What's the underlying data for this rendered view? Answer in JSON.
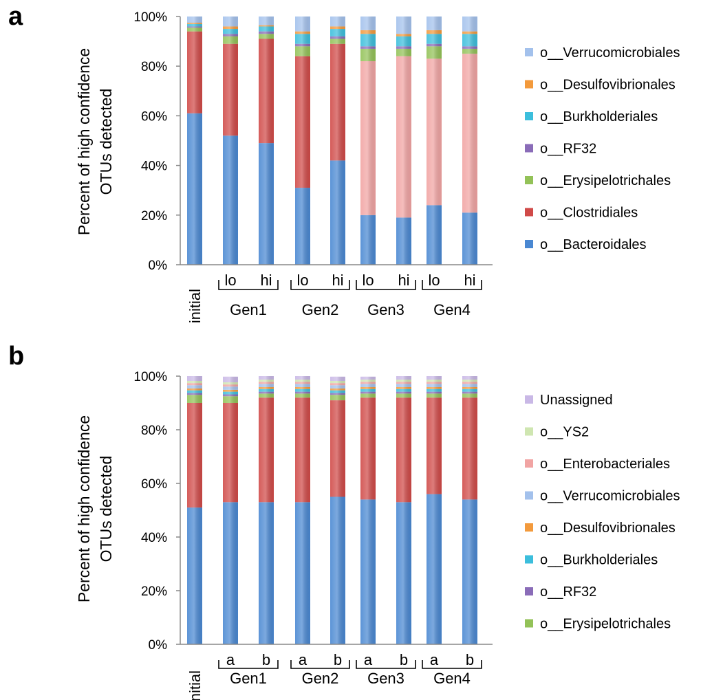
{
  "colors": {
    "Bacteroidales": "#4a88d2",
    "Clostridiales": "#d04a48",
    "Erysipelotrichales": "#93c258",
    "RF32": "#8a6cb8",
    "Burkholderiales": "#3cbedc",
    "Desulfovibrionales": "#f39a3c",
    "Verrucomicrobiales": "#a3c1ec",
    "Enterobacteriales": "#f1a4a3",
    "YS2": "#cfe6b1",
    "Unassigned": "#c9b8e6"
  },
  "chart_data": [
    {
      "type": "bar",
      "stacked": true,
      "panel": "a",
      "ylabel_lines": [
        "Percent of high confidence",
        "OTUs detected"
      ],
      "ylim": [
        0,
        100
      ],
      "yticks": [
        "0%",
        "20%",
        "40%",
        "60%",
        "80%",
        "100%"
      ],
      "categories": [
        "initial",
        "lo",
        "hi",
        "lo",
        "hi",
        "lo",
        "hi",
        "lo",
        "hi"
      ],
      "groups": [
        "Gen1",
        "Gen2",
        "Gen3",
        "Gen4"
      ],
      "legend": [
        "o__Verrucomicrobiales",
        "o__Desulfovibrionales",
        "o__Burkholderiales",
        "o__RF32",
        "o__Erysipelotrichales",
        "o__Clostridiales",
        "o__Bacteroidales"
      ],
      "series": [
        {
          "name": "o__Bacteroidales",
          "key": "Bacteroidales",
          "values": [
            61,
            52,
            49,
            31,
            42,
            20,
            19,
            24,
            21
          ]
        },
        {
          "name": "o__Clostridiales",
          "key": "Clostridiales",
          "values": [
            33,
            37,
            42,
            53,
            47,
            0,
            0,
            0,
            0
          ]
        },
        {
          "name": "",
          "key": "Enterobacteriales",
          "values": [
            0,
            0,
            0,
            0,
            0,
            62,
            65,
            59,
            64
          ]
        },
        {
          "name": "o__Erysipelotrichales",
          "key": "Erysipelotrichales",
          "values": [
            1.5,
            3,
            2,
            4,
            2,
            5,
            3,
            5,
            2
          ]
        },
        {
          "name": "o__RF32",
          "key": "RF32",
          "values": [
            0.5,
            1,
            1,
            1,
            1,
            1,
            1,
            1,
            1
          ]
        },
        {
          "name": "o__Burkholderiales",
          "key": "Burkholderiales",
          "values": [
            1,
            2,
            2,
            4,
            3,
            5,
            4,
            4,
            5
          ]
        },
        {
          "name": "o__Desulfovibrionales",
          "key": "Desulfovibrionales",
          "values": [
            0.5,
            1,
            0.5,
            1,
            1,
            1.5,
            1,
            1.5,
            1
          ]
        },
        {
          "name": "o__Verrucomicrobiales",
          "key": "Verrucomicrobiales",
          "values": [
            2.5,
            4,
            3.5,
            6,
            4,
            5.5,
            7,
            5.5,
            6
          ]
        }
      ]
    },
    {
      "type": "bar",
      "stacked": true,
      "panel": "b",
      "ylabel_lines": [
        "Percent of high confidence",
        "OTUs detected"
      ],
      "ylim": [
        0,
        100
      ],
      "yticks": [
        "0%",
        "20%",
        "40%",
        "60%",
        "80%",
        "100%"
      ],
      "categories": [
        "initial",
        "a",
        "b",
        "a",
        "b",
        "a",
        "b",
        "a",
        "b"
      ],
      "groups": [
        "Gen1",
        "Gen2",
        "Gen3",
        "Gen4"
      ],
      "legend": [
        "Unassigned",
        "o__YS2",
        "o__Enterobacteriales",
        "o__Verrucomicrobiales",
        "o__Desulfovibrionales",
        "o__Burkholderiales",
        "o__RF32",
        "o__Erysipelotrichales"
      ],
      "series": [
        {
          "name": "",
          "key": "Bacteroidales",
          "values": [
            51,
            53,
            53,
            53,
            55,
            54,
            53,
            56,
            54
          ]
        },
        {
          "name": "",
          "key": "Clostridiales",
          "values": [
            39,
            37,
            39,
            39,
            36,
            38,
            39,
            36,
            38
          ]
        },
        {
          "name": "o__Erysipelotrichales",
          "key": "Erysipelotrichales",
          "values": [
            3,
            2.5,
            1.5,
            1.5,
            2,
            1.5,
            1.5,
            1.5,
            1.5
          ]
        },
        {
          "name": "o__RF32",
          "key": "RF32",
          "values": [
            0.7,
            0.7,
            0.7,
            0.7,
            0.7,
            0.7,
            0.7,
            0.7,
            0.7
          ]
        },
        {
          "name": "o__Burkholderiales",
          "key": "Burkholderiales",
          "values": [
            1,
            1,
            1,
            1,
            1,
            1,
            1,
            1,
            1
          ]
        },
        {
          "name": "o__Desulfovibrionales",
          "key": "Desulfovibrionales",
          "values": [
            0.7,
            0.7,
            0.7,
            0.7,
            0.7,
            0.7,
            0.7,
            0.7,
            0.7
          ]
        },
        {
          "name": "o__Verrucomicrobiales",
          "key": "Verrucomicrobiales",
          "values": [
            1.2,
            1.2,
            1.2,
            1.2,
            1.2,
            1.2,
            1.2,
            1.2,
            1.2
          ]
        },
        {
          "name": "o__Enterobacteriales",
          "key": "Enterobacteriales",
          "values": [
            0.8,
            0.8,
            0.8,
            0.8,
            0.8,
            0.8,
            0.8,
            0.8,
            0.8
          ]
        },
        {
          "name": "o__YS2",
          "key": "YS2",
          "values": [
            0.8,
            0.8,
            0.8,
            0.8,
            0.8,
            0.8,
            0.8,
            0.8,
            0.8
          ]
        },
        {
          "name": "Unassigned",
          "key": "Unassigned",
          "values": [
            1.8,
            2.1,
            1.3,
            1.3,
            1.6,
            1.1,
            1.3,
            1.3,
            1.3
          ]
        }
      ],
      "legend_keys": [
        "Unassigned",
        "YS2",
        "Enterobacteriales",
        "Verrucomicrobiales",
        "Desulfovibrionales",
        "Burkholderiales",
        "RF32",
        "Erysipelotrichales"
      ]
    }
  ],
  "legend_keys_a": [
    "Verrucomicrobiales",
    "Desulfovibrionales",
    "Burkholderiales",
    "RF32",
    "Erysipelotrichales",
    "Clostridiales",
    "Bacteroidales"
  ]
}
